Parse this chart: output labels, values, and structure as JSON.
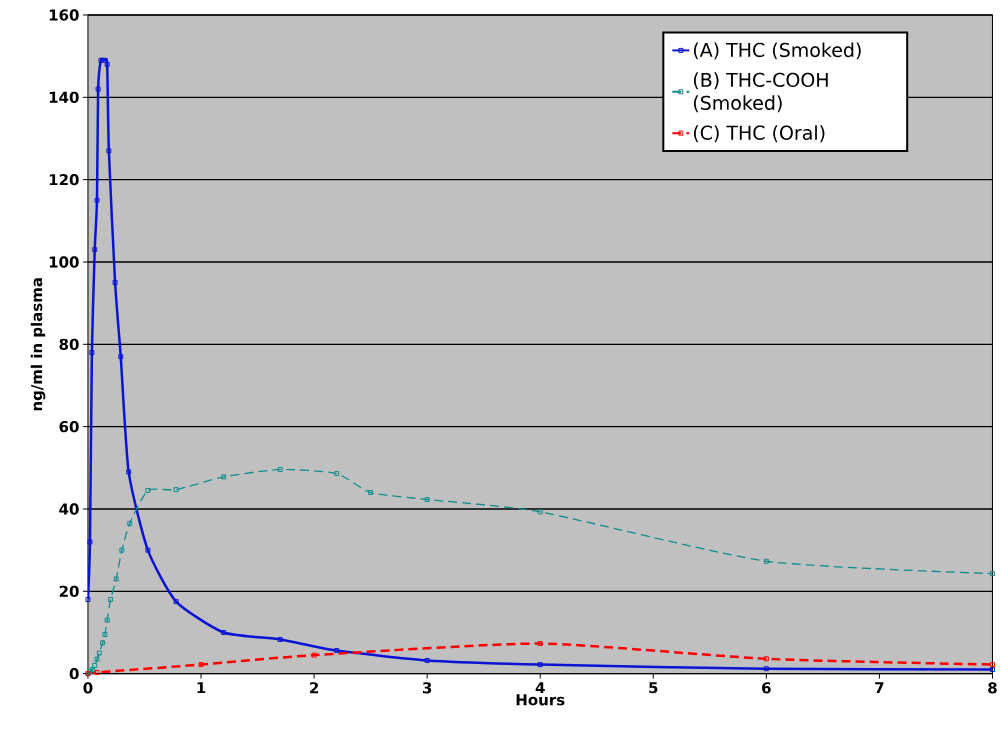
{
  "chart_data": {
    "type": "line",
    "xlabel": "Hours",
    "ylabel": "ng/ml in plasma",
    "xlim": [
      0,
      8
    ],
    "ylim": [
      0,
      160
    ],
    "xticks": [
      0,
      1,
      2,
      3,
      4,
      5,
      6,
      7,
      8
    ],
    "yticks": [
      0,
      20,
      40,
      60,
      80,
      100,
      120,
      140,
      160
    ],
    "grid": "y",
    "legend": "top right",
    "marker": "square",
    "series": [
      {
        "name": "(A) THC (Smoked)",
        "color": "#0a14d2",
        "line_style": "solid",
        "x": [
          0,
          0.018,
          0.035,
          0.06,
          0.08,
          0.09,
          0.115,
          0.15,
          0.17,
          0.185,
          0.24,
          0.29,
          0.36,
          0.53,
          0.78,
          1.2,
          1.7,
          2.2,
          3.0,
          4.0,
          6.0,
          8.0
        ],
        "values": [
          18,
          32,
          78,
          103,
          115,
          142,
          149,
          149,
          148,
          127,
          95,
          77,
          49,
          30,
          17.5,
          10,
          8.3,
          5.6,
          3.2,
          2.2,
          1.2,
          1
        ]
      },
      {
        "name": "(B) THC-COOH (Smoked)",
        "color": "#108c8c",
        "line_style": "dashed",
        "x": [
          0,
          0.02,
          0.04,
          0.06,
          0.08,
          0.1,
          0.13,
          0.15,
          0.17,
          0.2,
          0.25,
          0.3,
          0.37,
          0.53,
          0.78,
          1.2,
          1.7,
          2.2,
          2.5,
          3.0,
          4.0,
          6.0,
          8.0
        ],
        "values": [
          0,
          0.5,
          1,
          2,
          3.5,
          5,
          7.5,
          9.5,
          13,
          18,
          23,
          30,
          36.5,
          44.5,
          44.7,
          47.8,
          49.6,
          48.6,
          44,
          42.3,
          39.3,
          27.3,
          24.3
        ]
      },
      {
        "name": "(C) THC (Oral)",
        "color": "#ff0000",
        "line_style": "dashed",
        "x": [
          0,
          0.08,
          1,
          2,
          4,
          6,
          8
        ],
        "values": [
          0,
          0.3,
          2.2,
          4.5,
          7.3,
          3.6,
          2.2
        ]
      }
    ]
  }
}
